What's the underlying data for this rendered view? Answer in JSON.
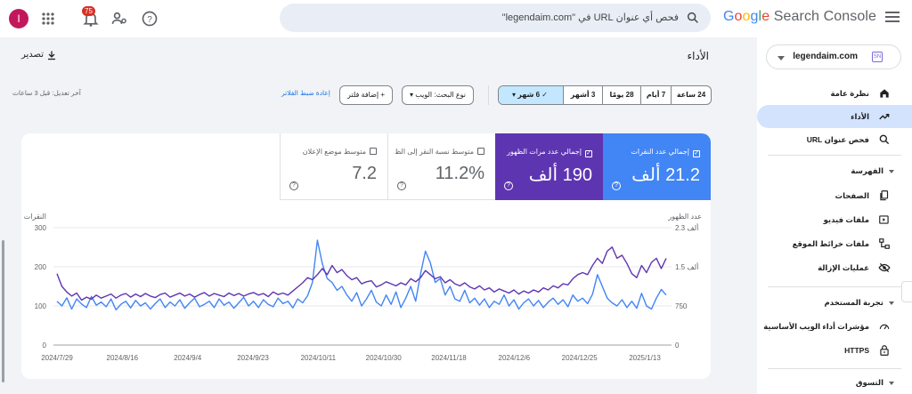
{
  "header": {
    "logo_google": "Google",
    "logo_product": "Search Console",
    "search_placeholder": "فحص أي عنوان URL في \"legendaim.com\"",
    "notifications_count": "75",
    "avatar_initial": "I"
  },
  "sidebar": {
    "property": "legendaim.com",
    "property_favicon": "SN",
    "items": [
      {
        "label": "نظرة عامة",
        "icon": "home-icon"
      },
      {
        "label": "الأداء",
        "icon": "trending-up-icon",
        "active": true
      },
      {
        "label": "فحص عنوان URL",
        "icon": "search-icon"
      }
    ],
    "section_indexing": "الفهرسة",
    "indexing_items": [
      {
        "label": "الصفحات",
        "icon": "pages-icon"
      },
      {
        "label": "ملفات فيديو",
        "icon": "video-icon"
      },
      {
        "label": "ملفات خرائط الموقع",
        "icon": "sitemap-icon"
      },
      {
        "label": "عمليات الإزالة",
        "icon": "removal-icon"
      }
    ],
    "section_experience": "تجربة المستخدم",
    "experience_items": [
      {
        "label": "مؤشرات أداء الويب الأساسية",
        "icon": "speed-icon"
      },
      {
        "label": "HTTPS",
        "icon": "lock-icon"
      }
    ],
    "section_shopping": "التسوق"
  },
  "main": {
    "title": "الأداء",
    "export_label": "تصدير",
    "last_update": "آخر تعديل: قبل 3 ساعات",
    "reset_filters": "إعادة ضبط الفلاتر",
    "add_filter": "إضافة فلتر",
    "search_type": "نوع البحث: الويب",
    "date_ranges": [
      {
        "label": "24 ساعة"
      },
      {
        "label": "7 أيام"
      },
      {
        "label": "28 يومًا"
      },
      {
        "label": "3 أشهر"
      },
      {
        "label": "6 شهر",
        "selected": true
      }
    ]
  },
  "metrics": [
    {
      "label": "إجمالي عدد النقرات",
      "value": "21.2 ألف",
      "checked": true
    },
    {
      "label": "إجمالي عدد مرات الظهور",
      "value": "190 ألف",
      "checked": true
    },
    {
      "label": "متوسط نسبة النقر إلى الظهور",
      "value": "11.2%",
      "checked": false
    },
    {
      "label": "متوسط موضع الإعلان",
      "value": "7.2",
      "checked": false
    }
  ],
  "colors": {
    "clicks": "#4285f4",
    "impressions": "#5e35b1",
    "accent": "#1a73e8"
  },
  "chart_data": {
    "type": "line",
    "left_axis_label": "النقرات",
    "right_axis_label": "عدد الظهور",
    "left_ticks": [
      "300",
      "200",
      "100",
      "0"
    ],
    "right_ticks": [
      "2.3 ألف",
      "1.5 ألف",
      "750",
      "0"
    ],
    "ylim_left": [
      0,
      300
    ],
    "ylim_right": [
      0,
      2300
    ],
    "x_labels": [
      "2024/7/29",
      "2024/8/16",
      "2024/9/4",
      "2024/9/23",
      "2024/10/11",
      "2024/10/30",
      "2024/11/18",
      "2024/12/6",
      "2024/12/25",
      "2025/1/13"
    ],
    "series": [
      {
        "name": "إجمالي عدد النقرات",
        "axis": "left",
        "color": "#4285f4",
        "values": [
          112,
          100,
          121,
          92,
          118,
          105,
          96,
          124,
          102,
          110,
          98,
          118,
          90,
          104,
          112,
          95,
          114,
          100,
          108,
          92,
          106,
          118,
          96,
          110,
          100,
          116,
          94,
          108,
          120,
          98,
          104,
          112,
          96,
          118,
          102,
          110,
          94,
          108,
          122,
          100,
          112,
          96,
          116,
          104,
          98,
          120,
          106,
          112,
          95,
          118,
          108,
          126,
          160,
          268,
          208,
          170,
          160,
          140,
          150,
          128,
          112,
          134,
          100,
          118,
          140,
          110,
          100,
          128,
          104,
          136,
          96,
          120,
          150,
          112,
          182,
          240,
          210,
          160,
          170,
          128,
          150,
          118,
          112,
          140,
          108,
          120,
          102,
          118,
          96,
          112,
          104,
          128,
          100,
          116,
          92,
          108,
          118,
          100,
          114,
          96,
          110,
          120,
          104,
          116,
          98,
          128,
          112,
          120,
          106,
          130,
          180,
          150,
          120,
          108,
          100,
          116,
          96,
          112,
          94,
          132,
          100,
          92,
          120,
          142,
          128
        ]
      },
      {
        "name": "إجمالي عدد مرات الظهور",
        "axis": "right",
        "color": "#5e35b1",
        "values": [
          1400,
          1150,
          1040,
          960,
          1020,
          880,
          940,
          900,
          980,
          920,
          960,
          1000,
          920,
          980,
          1010,
          940,
          1000,
          950,
          1010,
          960,
          930,
          990,
          1020,
          940,
          980,
          1020,
          960,
          1000,
          940,
          990,
          1030,
          960,
          1010,
          980,
          950,
          1020,
          970,
          1010,
          960,
          1000,
          1030,
          980,
          1010,
          950,
          1040,
          990,
          1020,
          980,
          1060,
          1140,
          1220,
          1320,
          1280,
          1380,
          1500,
          1380,
          1560,
          1420,
          1480,
          1360,
          1280,
          1320,
          1200,
          1240,
          1260,
          1140,
          1180,
          1240,
          1200,
          1160,
          1220,
          1180,
          1300,
          1240,
          1320,
          1460,
          1380,
          1300,
          1340,
          1220,
          1280,
          1200,
          1160,
          1220,
          1140,
          1100,
          1160,
          1080,
          1120,
          1040,
          1100,
          1060,
          1020,
          1080,
          1000,
          1060,
          1020,
          1080,
          1040,
          1120,
          1080,
          1160,
          1120,
          1200,
          1180,
          1300,
          1380,
          1420,
          1380,
          1560,
          1700,
          1600,
          1840,
          1920,
          1700,
          1760,
          1600,
          1400,
          1320,
          1560,
          1420,
          1620,
          1700,
          1500,
          1700
        ]
      }
    ]
  }
}
